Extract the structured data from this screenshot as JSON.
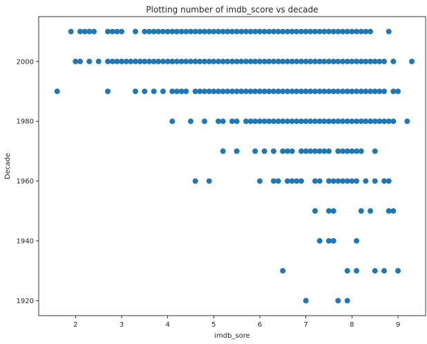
{
  "chart_data": {
    "type": "scatter",
    "title": "Plotting number of imdb_score vs decade",
    "xlabel": "imdb_sore",
    "ylabel": "Decade",
    "xlim": [
      1.2,
      9.6
    ],
    "ylim": [
      1915,
      2015
    ],
    "xticks": [
      2,
      3,
      4,
      5,
      6,
      7,
      8,
      9
    ],
    "yticks": [
      1920,
      1940,
      1960,
      1980,
      2000
    ],
    "marker_color": "#1f77b4",
    "grid": false,
    "legend": "none",
    "series": [
      {
        "points": [
          {
            "decade": 2010,
            "scores": [
              1.9,
              2.1,
              2.2,
              2.3,
              2.4,
              2.7,
              2.8,
              2.9,
              3.0,
              3.3,
              3.5,
              3.6,
              3.7,
              3.8,
              3.9,
              4.0,
              4.1,
              4.2,
              4.3,
              4.4,
              4.5,
              4.6,
              4.7,
              4.8,
              4.9,
              5.0,
              5.1,
              5.2,
              5.3,
              5.4,
              5.5,
              5.6,
              5.7,
              5.8,
              5.9,
              6.0,
              6.1,
              6.2,
              6.3,
              6.4,
              6.5,
              6.6,
              6.7,
              6.8,
              6.9,
              7.0,
              7.1,
              7.2,
              7.3,
              7.4,
              7.5,
              7.6,
              7.7,
              7.8,
              7.9,
              8.0,
              8.1,
              8.2,
              8.3,
              8.4,
              8.8
            ]
          },
          {
            "decade": 2000,
            "scores": [
              2.0,
              2.1,
              2.3,
              2.5,
              2.7,
              2.8,
              2.9,
              3.0,
              3.1,
              3.2,
              3.3,
              3.4,
              3.5,
              3.6,
              3.7,
              3.8,
              3.9,
              4.0,
              4.1,
              4.2,
              4.3,
              4.4,
              4.5,
              4.6,
              4.7,
              4.8,
              4.9,
              5.0,
              5.1,
              5.2,
              5.3,
              5.4,
              5.5,
              5.6,
              5.7,
              5.8,
              5.9,
              6.0,
              6.1,
              6.2,
              6.3,
              6.4,
              6.5,
              6.6,
              6.7,
              6.8,
              6.9,
              7.0,
              7.1,
              7.2,
              7.3,
              7.4,
              7.5,
              7.6,
              7.7,
              7.8,
              7.9,
              8.0,
              8.1,
              8.2,
              8.3,
              8.4,
              8.5,
              8.6,
              8.7,
              8.9,
              9.3
            ]
          },
          {
            "decade": 1990,
            "scores": [
              1.6,
              2.7,
              3.3,
              3.5,
              3.7,
              3.9,
              4.1,
              4.2,
              4.3,
              4.4,
              4.6,
              4.7,
              4.8,
              4.9,
              5.0,
              5.1,
              5.2,
              5.3,
              5.4,
              5.5,
              5.6,
              5.7,
              5.8,
              5.9,
              6.0,
              6.1,
              6.2,
              6.3,
              6.4,
              6.5,
              6.6,
              6.7,
              6.8,
              6.9,
              7.0,
              7.1,
              7.2,
              7.3,
              7.4,
              7.5,
              7.6,
              7.7,
              7.8,
              7.9,
              8.0,
              8.1,
              8.2,
              8.3,
              8.4,
              8.5,
              8.6,
              8.7,
              8.9,
              9.0
            ]
          },
          {
            "decade": 1980,
            "scores": [
              4.1,
              4.5,
              4.8,
              5.1,
              5.2,
              5.4,
              5.5,
              5.7,
              5.8,
              5.9,
              6.0,
              6.1,
              6.2,
              6.3,
              6.4,
              6.5,
              6.6,
              6.7,
              6.8,
              6.9,
              7.0,
              7.1,
              7.2,
              7.3,
              7.4,
              7.5,
              7.6,
              7.7,
              7.8,
              7.9,
              8.0,
              8.1,
              8.2,
              8.3,
              8.4,
              8.5,
              8.6,
              8.7,
              8.8,
              8.9,
              9.2
            ]
          },
          {
            "decade": 1970,
            "scores": [
              5.2,
              5.5,
              5.9,
              6.1,
              6.3,
              6.5,
              6.6,
              6.7,
              6.9,
              7.0,
              7.1,
              7.2,
              7.3,
              7.4,
              7.5,
              7.7,
              7.8,
              7.9,
              8.0,
              8.1,
              8.2,
              8.5
            ]
          },
          {
            "decade": 1960,
            "scores": [
              4.6,
              4.9,
              6.0,
              6.3,
              6.4,
              6.6,
              6.7,
              6.8,
              6.9,
              7.2,
              7.3,
              7.5,
              7.6,
              7.7,
              7.8,
              7.9,
              8.0,
              8.1,
              8.3,
              8.5,
              8.7,
              8.8
            ]
          },
          {
            "decade": 1950,
            "scores": [
              7.2,
              7.5,
              7.6,
              8.2,
              8.4,
              8.8,
              8.9
            ]
          },
          {
            "decade": 1940,
            "scores": [
              7.3,
              7.5,
              7.6,
              8.1
            ]
          },
          {
            "decade": 1930,
            "scores": [
              6.5,
              7.9,
              8.1,
              8.5,
              8.7,
              9.0
            ]
          },
          {
            "decade": 1920,
            "scores": [
              7.0,
              7.7,
              7.9
            ]
          }
        ]
      }
    ]
  }
}
